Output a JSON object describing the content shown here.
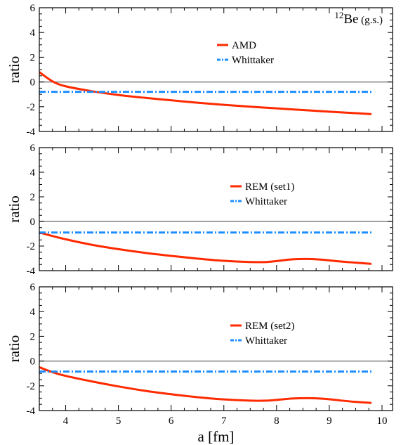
{
  "chart_data": [
    {
      "type": "line",
      "ylabel": "ratio",
      "xlim": [
        3.5,
        10.2
      ],
      "ylim": [
        -4,
        6
      ],
      "annotation": {
        "sup": "12",
        "main": "Be",
        "suffix": "(g.s.)"
      },
      "series": [
        {
          "name": "AMD",
          "color": "#ff2a00",
          "style": "solid",
          "x": [
            3.5,
            3.75,
            4.0,
            4.5,
            5.0,
            5.5,
            6.0,
            6.5,
            7.0,
            7.5,
            8.0,
            8.5,
            9.0,
            9.5,
            9.8
          ],
          "y": [
            0.8,
            0.05,
            -0.35,
            -0.75,
            -1.05,
            -1.28,
            -1.48,
            -1.68,
            -1.85,
            -2.0,
            -2.13,
            -2.27,
            -2.4,
            -2.52,
            -2.6
          ]
        },
        {
          "name": "Whittaker",
          "color": "#1f8fff",
          "style": "dashdot",
          "x": [
            3.5,
            9.8
          ],
          "y": [
            -0.8,
            -0.8
          ]
        }
      ]
    },
    {
      "type": "line",
      "ylabel": "ratio",
      "xlim": [
        3.5,
        10.2
      ],
      "ylim": [
        -4,
        6
      ],
      "series": [
        {
          "name": "REM (set1)",
          "color": "#ff2a00",
          "style": "solid",
          "x": [
            3.5,
            4.0,
            4.5,
            5.0,
            5.5,
            6.0,
            6.5,
            7.0,
            7.5,
            7.8,
            8.0,
            8.3,
            8.6,
            8.9,
            9.2,
            9.5,
            9.8
          ],
          "y": [
            -0.9,
            -1.45,
            -1.9,
            -2.25,
            -2.55,
            -2.8,
            -3.02,
            -3.2,
            -3.3,
            -3.3,
            -3.22,
            -3.08,
            -3.05,
            -3.12,
            -3.25,
            -3.35,
            -3.45
          ]
        },
        {
          "name": "Whittaker",
          "color": "#1f8fff",
          "style": "dashdot",
          "x": [
            3.5,
            9.8
          ],
          "y": [
            -0.9,
            -0.9
          ]
        }
      ]
    },
    {
      "type": "line",
      "ylabel": "ratio",
      "xlabel": "a [fm]",
      "xlim": [
        3.5,
        10.2
      ],
      "ylim": [
        -4,
        6
      ],
      "x_ticks": [
        4,
        5,
        6,
        7,
        8,
        9,
        10
      ],
      "series": [
        {
          "name": "REM (set2)",
          "color": "#ff2a00",
          "style": "solid",
          "x": [
            3.5,
            3.75,
            4.0,
            4.5,
            5.0,
            5.5,
            6.0,
            6.5,
            7.0,
            7.5,
            7.8,
            8.0,
            8.3,
            8.6,
            8.9,
            9.2,
            9.5,
            9.8
          ],
          "y": [
            -0.5,
            -0.9,
            -1.2,
            -1.65,
            -2.05,
            -2.4,
            -2.68,
            -2.92,
            -3.1,
            -3.2,
            -3.2,
            -3.14,
            -3.03,
            -3.0,
            -3.05,
            -3.18,
            -3.3,
            -3.38
          ]
        },
        {
          "name": "Whittaker",
          "color": "#1f8fff",
          "style": "dashdot",
          "x": [
            3.5,
            9.8
          ],
          "y": [
            -0.85,
            -0.85
          ]
        }
      ]
    }
  ]
}
